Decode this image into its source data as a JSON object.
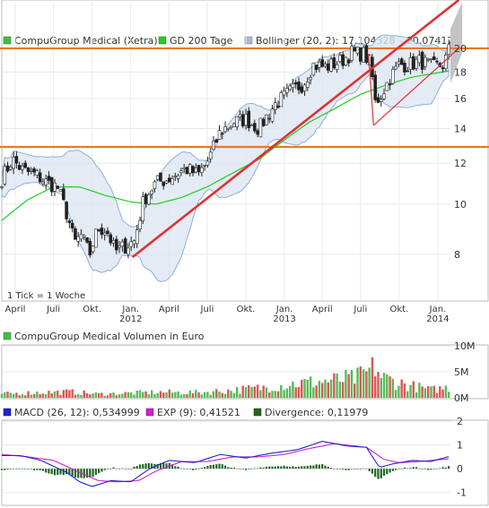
{
  "chart_data": [
    {
      "type": "candlestick",
      "legend": [
        {
          "label": "CompuGroup Medical (Xetra)",
          "color": "#44bb44"
        },
        {
          "label": "GD 200 Tage",
          "color": "#22cc22"
        },
        {
          "label": "Bollinger (20, 2): 17,104328 – 20,074172",
          "color": "#99aabb"
        }
      ],
      "note": "1 Tick = 1 Woche",
      "ylim": [
        6.5,
        24.6
      ],
      "y_scale": "log",
      "y_ticks": [
        8,
        10,
        12,
        14,
        16,
        18,
        20
      ],
      "x_range": [
        "2011-02-28",
        "2014-01-31"
      ],
      "x_month_ticks": [
        {
          "label": "April",
          "date": "2011-04-01"
        },
        {
          "label": "Juli",
          "date": "2011-07-01"
        },
        {
          "label": "Okt.",
          "date": "2011-10-01"
        },
        {
          "label": "Jan.",
          "date": "2012-01-01",
          "year": "2012"
        },
        {
          "label": "April",
          "date": "2012-04-01"
        },
        {
          "label": "Juli",
          "date": "2012-07-01"
        },
        {
          "label": "Okt.",
          "date": "2012-10-01"
        },
        {
          "label": "Jan.",
          "date": "2013-01-01",
          "year": "2013"
        },
        {
          "label": "April",
          "date": "2013-04-01"
        },
        {
          "label": "Juli",
          "date": "2013-07-01"
        },
        {
          "label": "Okt.",
          "date": "2013-10-01"
        },
        {
          "label": "Jan.",
          "date": "2014-01-01",
          "year": "2014"
        }
      ],
      "keyframes": [
        [
          "2011-02-28",
          11.2
        ],
        [
          "2011-03-25",
          12.2
        ],
        [
          "2011-04-20",
          11.6
        ],
        [
          "2011-05-20",
          11.4
        ],
        [
          "2011-06-15",
          11.0
        ],
        [
          "2011-07-10",
          10.8
        ],
        [
          "2011-08-05",
          9.4
        ],
        [
          "2011-08-20",
          8.4
        ],
        [
          "2011-09-05",
          8.7
        ],
        [
          "2011-09-25",
          8.0
        ],
        [
          "2011-10-15",
          9.0
        ],
        [
          "2011-11-05",
          8.9
        ],
        [
          "2011-11-25",
          8.1
        ],
        [
          "2011-12-20",
          8.3
        ],
        [
          "2012-01-10",
          8.5
        ],
        [
          "2012-02-01",
          10.2
        ],
        [
          "2012-03-01",
          11.0
        ],
        [
          "2012-04-01",
          11.2
        ],
        [
          "2012-05-10",
          11.7
        ],
        [
          "2012-06-10",
          11.4
        ],
        [
          "2012-07-05",
          12.2
        ],
        [
          "2012-08-01",
          13.8
        ],
        [
          "2012-09-01",
          14.4
        ],
        [
          "2012-10-01",
          14.6
        ],
        [
          "2012-11-01",
          14.0
        ],
        [
          "2012-12-10",
          15.6
        ],
        [
          "2013-01-15",
          16.5
        ],
        [
          "2013-02-15",
          17.1
        ],
        [
          "2013-03-10",
          18.6
        ],
        [
          "2013-04-10",
          18.4
        ],
        [
          "2013-05-15",
          18.9
        ],
        [
          "2013-06-10",
          19.6
        ],
        [
          "2013-07-10",
          19.5
        ],
        [
          "2013-07-25",
          18.6
        ],
        [
          "2013-08-05",
          15.7
        ],
        [
          "2013-08-20",
          16.3
        ],
        [
          "2013-09-10",
          17.6
        ],
        [
          "2013-10-01",
          18.6
        ],
        [
          "2013-10-25",
          18.6
        ],
        [
          "2013-11-20",
          18.9
        ],
        [
          "2013-12-20",
          18.4
        ],
        [
          "2014-01-15",
          18.6
        ],
        [
          "2014-01-28",
          19.9
        ]
      ],
      "gd200": [
        [
          "2011-02-28",
          9.3
        ],
        [
          "2011-05-01",
          10.2
        ],
        [
          "2011-07-01",
          10.8
        ],
        [
          "2011-09-01",
          10.8
        ],
        [
          "2011-11-01",
          10.4
        ],
        [
          "2012-01-01",
          10.1
        ],
        [
          "2012-03-01",
          10.0
        ],
        [
          "2012-05-01",
          10.3
        ],
        [
          "2012-07-01",
          10.8
        ],
        [
          "2012-09-01",
          11.5
        ],
        [
          "2012-11-01",
          12.2
        ],
        [
          "2013-01-01",
          13.3
        ],
        [
          "2013-03-01",
          14.4
        ],
        [
          "2013-05-01",
          15.3
        ],
        [
          "2013-07-01",
          16.3
        ],
        [
          "2013-09-01",
          17.0
        ],
        [
          "2013-11-01",
          17.6
        ],
        [
          "2014-01-31",
          18.1
        ]
      ],
      "horizontal_lines": [
        {
          "y": 12.9,
          "color": "#ee7722"
        },
        {
          "y": 20.0,
          "color": "#ee7722"
        }
      ],
      "trendlines": [
        {
          "from": [
            "2012-01-05",
            7.9
          ],
          "to": [
            "2014-02-20",
            24.8
          ],
          "color": "#dd3333"
        },
        {
          "from": [
            "2013-07-20",
            19.5
          ],
          "to": [
            "2013-08-01",
            14.2
          ],
          "color": "#dd3333"
        },
        {
          "from": [
            "2013-08-01",
            14.2
          ],
          "to": [
            "2014-02-20",
            20.0
          ],
          "color": "#dd3333"
        }
      ],
      "forecast_band": {
        "from": "2014-01-31",
        "to": "2014-02-28",
        "top": [
          21.8,
          24.6
        ],
        "bottom": [
          17.1,
          19.6
        ]
      }
    },
    {
      "type": "bar",
      "legend": {
        "label": "CompuGroup Medical Volumen in Euro",
        "color": "#44bb44"
      },
      "y_ticks": [
        "0M",
        "5M",
        "10M"
      ],
      "ylim": [
        0,
        10
      ],
      "unit": "M",
      "peaks": [
        [
          "2011-03-15",
          1.1
        ],
        [
          "2011-05-20",
          1.4
        ],
        [
          "2011-08-10",
          1.6
        ],
        [
          "2011-10-15",
          1.0
        ],
        [
          "2012-03-10",
          1.5
        ],
        [
          "2012-06-10",
          1.4
        ],
        [
          "2012-09-10",
          2.1
        ],
        [
          "2012-11-10",
          2.7
        ],
        [
          "2013-01-20",
          3.7
        ],
        [
          "2013-03-15",
          4.2
        ],
        [
          "2013-06-20",
          5.2
        ],
        [
          "2013-07-25",
          7.1
        ],
        [
          "2013-08-05",
          8.5
        ],
        [
          "2013-08-20",
          5.4
        ],
        [
          "2013-10-20",
          3.4
        ],
        [
          "2013-12-15",
          2.1
        ],
        [
          "2014-01-28",
          2.8
        ]
      ]
    },
    {
      "type": "line",
      "legend": [
        {
          "label": "MACD (26, 12): 0,534999",
          "color": "#2222cc"
        },
        {
          "label": "EXP (9): 0,41521",
          "color": "#cc22cc"
        },
        {
          "label": "Divergence: 0,11979",
          "color": "#226622"
        }
      ],
      "y_ticks": [
        "-1",
        "0",
        "1",
        "2"
      ],
      "ylim": [
        -1.5,
        2
      ],
      "series": [
        {
          "name": "MACD (26, 12)",
          "values": [
            [
              "2011-02-28",
              0.55
            ],
            [
              "2011-04-15",
              0.55
            ],
            [
              "2011-06-01",
              0.35
            ],
            [
              "2011-08-01",
              -0.15
            ],
            [
              "2011-09-01",
              -0.55
            ],
            [
              "2011-10-01",
              -0.75
            ],
            [
              "2011-11-15",
              -0.5
            ],
            [
              "2012-01-01",
              -0.55
            ],
            [
              "2012-02-15",
              0.0
            ],
            [
              "2012-04-01",
              0.35
            ],
            [
              "2012-06-01",
              0.25
            ],
            [
              "2012-08-01",
              0.6
            ],
            [
              "2012-10-01",
              0.45
            ],
            [
              "2012-12-01",
              0.65
            ],
            [
              "2013-02-01",
              0.8
            ],
            [
              "2013-04-01",
              1.15
            ],
            [
              "2013-06-01",
              0.95
            ],
            [
              "2013-07-15",
              0.9
            ],
            [
              "2013-08-15",
              0.05
            ],
            [
              "2013-09-15",
              0.2
            ],
            [
              "2013-11-01",
              0.35
            ],
            [
              "2013-12-15",
              0.3
            ],
            [
              "2014-01-31",
              0.53
            ]
          ]
        },
        {
          "name": "EXP (9)",
          "values": [
            [
              "2011-02-28",
              0.6
            ],
            [
              "2011-05-01",
              0.5
            ],
            [
              "2011-07-01",
              0.35
            ],
            [
              "2011-09-01",
              -0.15
            ],
            [
              "2011-10-15",
              -0.5
            ],
            [
              "2011-12-01",
              -0.55
            ],
            [
              "2012-01-20",
              -0.5
            ],
            [
              "2012-03-01",
              -0.1
            ],
            [
              "2012-05-01",
              0.3
            ],
            [
              "2012-07-01",
              0.3
            ],
            [
              "2012-09-01",
              0.5
            ],
            [
              "2012-11-01",
              0.5
            ],
            [
              "2013-01-01",
              0.6
            ],
            [
              "2013-03-01",
              0.85
            ],
            [
              "2013-05-01",
              1.05
            ],
            [
              "2013-07-15",
              0.9
            ],
            [
              "2013-08-25",
              0.4
            ],
            [
              "2013-10-01",
              0.25
            ],
            [
              "2013-11-15",
              0.3
            ],
            [
              "2014-01-31",
              0.42
            ]
          ]
        }
      ]
    }
  ]
}
